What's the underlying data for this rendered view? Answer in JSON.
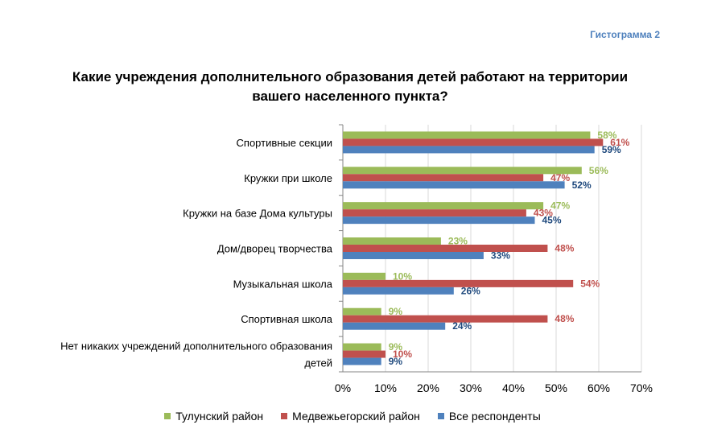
{
  "header": {
    "tag": "Гистограмма 2",
    "title": "Какие учреждения дополнительного образования детей работают на территории вашего населенного пункта?"
  },
  "chart_data": {
    "type": "bar",
    "orientation": "horizontal",
    "title": "Какие учреждения дополнительного образования детей работают на территории вашего населенного пункта?",
    "categories": [
      "Спортивные секции",
      "Кружки при школе",
      "Кружки на базе Дома культуры",
      "Дом/дворец творчества",
      "Музыкальная школа",
      "Спортивная школа",
      "Нет никаких учреждений дополнительного образования детей"
    ],
    "category_lines": [
      [
        "Спортивные секции"
      ],
      [
        "Кружки при школе"
      ],
      [
        "Кружки на базе Дома культуры"
      ],
      [
        "Дом/дворец творчества"
      ],
      [
        "Музыкальная школа"
      ],
      [
        "Спортивная школа"
      ],
      [
        "Нет никаких учреждений дополнительного образования",
        "детей"
      ]
    ],
    "series": [
      {
        "name": "Тулунский район",
        "color": "#9bbb59",
        "label_color": "#9bbb59",
        "values": [
          58,
          56,
          47,
          23,
          10,
          9,
          9
        ]
      },
      {
        "name": "Медвежьегорский район",
        "color": "#c0504d",
        "label_color": "#c0504d",
        "values": [
          61,
          47,
          43,
          48,
          54,
          48,
          10
        ]
      },
      {
        "name": "Все респонденты",
        "color": "#4f81bd",
        "label_color": "#1f497d",
        "values": [
          59,
          52,
          45,
          33,
          26,
          24,
          9
        ]
      }
    ],
    "xlim": [
      0,
      70
    ],
    "xticks": [
      "0%",
      "10%",
      "20%",
      "30%",
      "40%",
      "50%",
      "60%",
      "70%"
    ],
    "value_suffix": "%",
    "grid": true,
    "legend_position": "bottom"
  }
}
